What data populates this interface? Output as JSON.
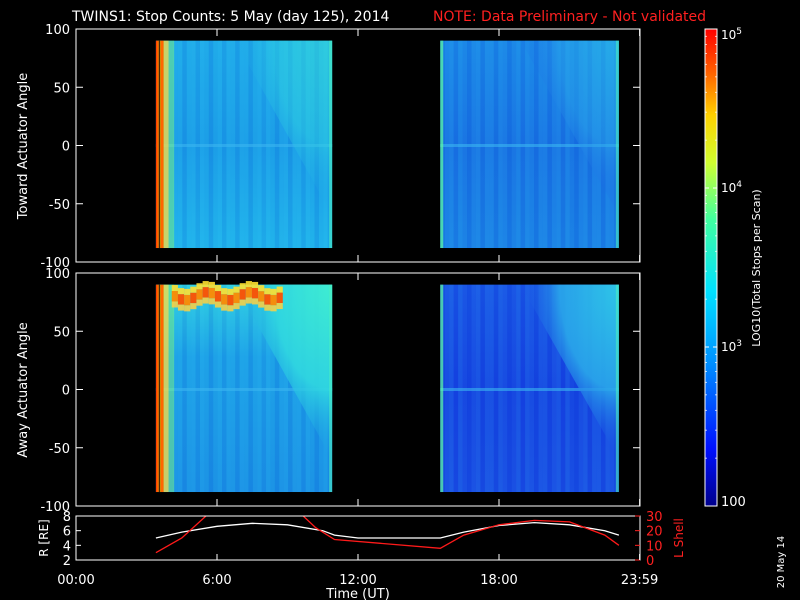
{
  "header": {
    "title": "TWINS1: Stop Counts:  5 May (day 125), 2014",
    "note": "NOTE: Data Preliminary - Not validated"
  },
  "side_date": "20 May 14",
  "colors": {
    "note": "#ff2020",
    "lshell": "#ff1a1a",
    "radius": "#ffffff",
    "background": "#000000"
  },
  "colorbar": {
    "label": "LOG10(Total Stops per Scan)",
    "scale": "log",
    "range": [
      100,
      100000
    ],
    "ticks": [
      {
        "value": 100,
        "label": "100"
      },
      {
        "value": 1000,
        "label": "10^3"
      },
      {
        "value": 10000,
        "label": "10^4"
      },
      {
        "value": 100000,
        "label": "10^5"
      }
    ],
    "colormap": "rainbow (blue-cyan-green-yellow-red)"
  },
  "time_axis": {
    "label": "Time (UT)",
    "range_hours": [
      0,
      24
    ],
    "ticks": [
      {
        "value": 0,
        "label": "00:00"
      },
      {
        "value": 6,
        "label": "6:00"
      },
      {
        "value": 12,
        "label": "12:00"
      },
      {
        "value": 18,
        "label": "18:00"
      },
      {
        "value": 23.983,
        "label": "23:59"
      }
    ]
  },
  "chart_data": [
    {
      "type": "heatmap",
      "panel": "toward",
      "ylabel": "Toward Actuator Angle",
      "ylim": [
        -100,
        100
      ],
      "yticks": [
        100,
        50,
        0,
        -50,
        -100
      ],
      "data_intervals_hours": [
        [
          3.4,
          10.9
        ],
        [
          15.5,
          23.1
        ]
      ],
      "angle_range": [
        -88,
        90
      ]
    },
    {
      "type": "heatmap",
      "panel": "away",
      "ylabel": "Away Actuator Angle",
      "ylim": [
        -100,
        100
      ],
      "yticks": [
        100,
        50,
        0,
        -50,
        -100
      ],
      "data_intervals_hours": [
        [
          3.4,
          10.9
        ],
        [
          15.5,
          23.1
        ]
      ],
      "angle_range": [
        -88,
        90
      ]
    },
    {
      "type": "line",
      "panel": "orbit",
      "ylabel_left": "R [RE]",
      "ylabel_right": "L Shell",
      "ylim_left": [
        2,
        8
      ],
      "yticks_left": [
        2,
        4,
        6,
        8
      ],
      "ylim_right": [
        0,
        30
      ],
      "yticks_right": [
        0,
        10,
        20,
        30
      ],
      "series": [
        {
          "name": "R [RE]",
          "x": [
            3.4,
            4.5,
            6.0,
            7.5,
            9.0,
            10.5,
            11.0,
            12.0,
            14.0,
            15.5,
            16.5,
            18.0,
            19.5,
            21.0,
            22.5,
            23.1
          ],
          "values": [
            5.0,
            5.8,
            6.6,
            7.0,
            6.8,
            6.0,
            5.4,
            5.0,
            5.0,
            5.0,
            5.8,
            6.7,
            7.1,
            6.8,
            6.0,
            5.4
          ]
        },
        {
          "name": "L Shell",
          "x": [
            3.4,
            4.5,
            5.6,
            9.6,
            10.2,
            11.0,
            15.5,
            16.5,
            18.0,
            19.5,
            21.0,
            22.5,
            23.1
          ],
          "values": [
            5,
            15,
            31,
            31,
            22,
            14,
            8,
            17,
            24,
            27,
            26,
            17,
            10
          ]
        }
      ]
    }
  ]
}
